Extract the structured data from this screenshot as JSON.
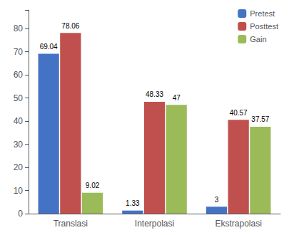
{
  "chart_data": {
    "type": "bar",
    "categories": [
      "Translasi",
      "Interpolasi",
      "Ekstrapolasi"
    ],
    "series": [
      {
        "name": "Pretest",
        "color": "#4472C4",
        "values": [
          69.04,
          1.33,
          3
        ]
      },
      {
        "name": "Posttest",
        "color": "#C0504D",
        "values": [
          78.06,
          48.33,
          40.57
        ]
      },
      {
        "name": "Gain",
        "color": "#9BBB59",
        "values": [
          9.02,
          47,
          37.57
        ]
      }
    ],
    "ylim": [
      0,
      88
    ],
    "yticks": [
      0,
      10,
      20,
      30,
      40,
      50,
      60,
      70,
      80
    ],
    "grid": false,
    "legend": "upper right",
    "data_labels": true
  }
}
